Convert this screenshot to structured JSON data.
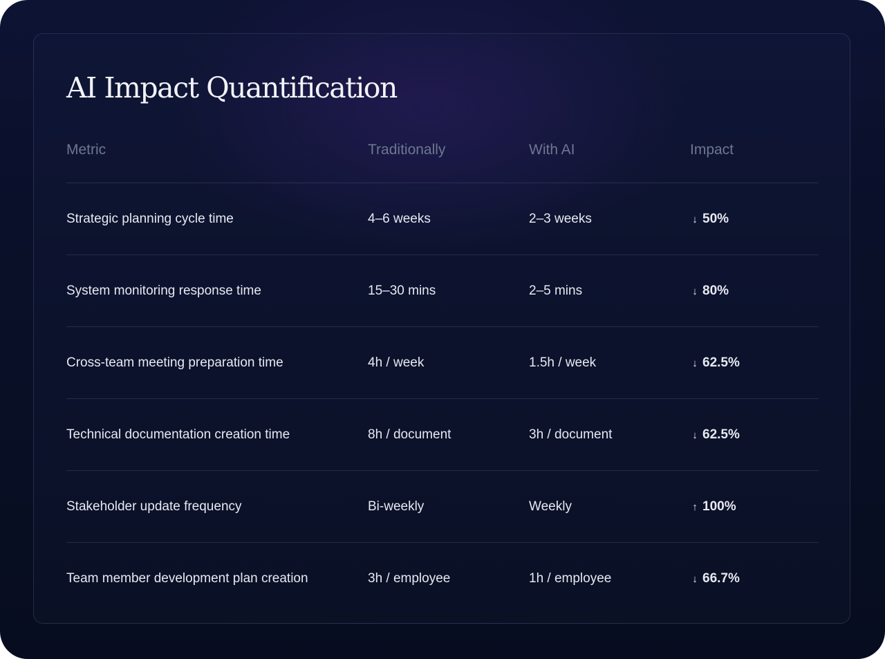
{
  "title": "AI Impact Quantification",
  "columns": {
    "metric": "Metric",
    "traditionally": "Traditionally",
    "with_ai": "With AI",
    "impact": "Impact"
  },
  "rows": [
    {
      "metric": "Strategic planning cycle time",
      "traditionally": "4–6 weeks",
      "with_ai": "2–3 weeks",
      "impact": "50%",
      "direction": "down",
      "arrow": "↓"
    },
    {
      "metric": "System monitoring response time",
      "traditionally": "15–30 mins",
      "with_ai": "2–5 mins",
      "impact": "80%",
      "direction": "down",
      "arrow": "↓"
    },
    {
      "metric": "Cross-team meeting preparation time",
      "traditionally": "4h / week",
      "with_ai": "1.5h / week",
      "impact": "62.5%",
      "direction": "down",
      "arrow": "↓"
    },
    {
      "metric": "Technical documentation creation time",
      "traditionally": "8h / document",
      "with_ai": "3h / document",
      "impact": "62.5%",
      "direction": "down",
      "arrow": "↓"
    },
    {
      "metric": "Stakeholder update frequency",
      "traditionally": "Bi-weekly",
      "with_ai": "Weekly",
      "impact": "100%",
      "direction": "up",
      "arrow": "↑"
    },
    {
      "metric": "Team member development plan creation",
      "traditionally": "3h / employee",
      "with_ai": "1h / employee",
      "impact": "66.7%",
      "direction": "down",
      "arrow": "↓"
    }
  ],
  "colors": {
    "background": "#0a1029",
    "text_primary": "#e7e9f1",
    "text_header": "#6d7790",
    "divider": "#262d45"
  }
}
